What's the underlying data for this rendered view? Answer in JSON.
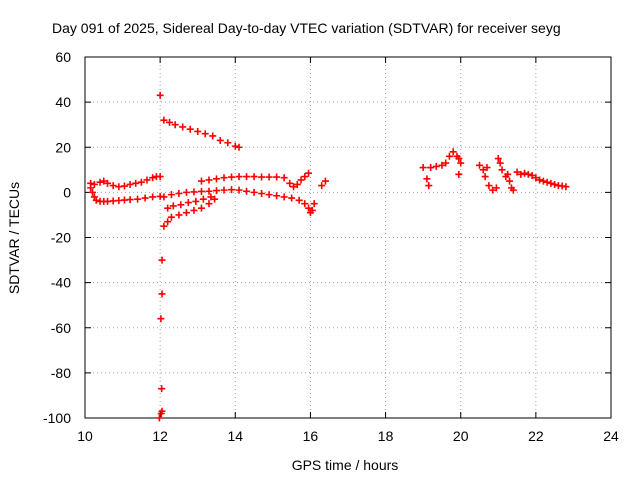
{
  "chart_data": {
    "type": "scatter",
    "title": "Day 091 of 2025, Sidereal Day-to-day VTEC variation (SDTVAR) for receiver seyg",
    "xlabel": "GPS time / hours",
    "ylabel": "SDTVAR / TECUs",
    "xlim": [
      10,
      24
    ],
    "ylim": [
      -100,
      60
    ],
    "xticks": [
      10,
      12,
      14,
      16,
      18,
      20,
      22,
      24
    ],
    "yticks": [
      -100,
      -80,
      -60,
      -40,
      -20,
      0,
      20,
      40,
      60
    ],
    "xtick_labels": [
      "10",
      "12",
      "14",
      "16",
      "18",
      "20",
      "22",
      "24"
    ],
    "ytick_labels": [
      "-100",
      "-80",
      "-60",
      "-40",
      "-20",
      "0",
      "20",
      "40",
      "60"
    ],
    "grid": true,
    "marker": "plus",
    "color": "#ff0000",
    "series": [
      {
        "name": "SDTVAR",
        "points": [
          [
            10.15,
            2
          ],
          [
            10.2,
            0
          ],
          [
            10.25,
            -2
          ],
          [
            10.3,
            -3.5
          ],
          [
            10.4,
            -4
          ],
          [
            10.5,
            -4
          ],
          [
            10.6,
            -4
          ],
          [
            10.75,
            -3.8
          ],
          [
            10.9,
            -3.6
          ],
          [
            11.05,
            -3.4
          ],
          [
            11.2,
            -3.2
          ],
          [
            11.4,
            -3
          ],
          [
            11.6,
            -2.5
          ],
          [
            11.8,
            -2
          ],
          [
            12.0,
            -1.8
          ],
          [
            10.15,
            4
          ],
          [
            10.25,
            3.5
          ],
          [
            10.4,
            4.5
          ],
          [
            10.5,
            5
          ],
          [
            10.6,
            4
          ],
          [
            10.75,
            3
          ],
          [
            10.9,
            2.5
          ],
          [
            11.05,
            2.8
          ],
          [
            11.2,
            3.5
          ],
          [
            11.35,
            4
          ],
          [
            11.5,
            4.5
          ],
          [
            11.65,
            5.5
          ],
          [
            11.8,
            6.5
          ],
          [
            11.9,
            7
          ],
          [
            12.0,
            7
          ],
          [
            12.0,
            43
          ],
          [
            12.05,
            -30
          ],
          [
            12.05,
            -45
          ],
          [
            12.02,
            -56
          ],
          [
            12.04,
            -87
          ],
          [
            12.03,
            -98
          ],
          [
            12.05,
            -97
          ],
          [
            11.98,
            -100
          ],
          [
            12.1,
            32
          ],
          [
            12.25,
            31
          ],
          [
            12.4,
            30
          ],
          [
            12.6,
            29
          ],
          [
            12.8,
            28
          ],
          [
            13.0,
            27
          ],
          [
            13.2,
            26
          ],
          [
            13.4,
            25
          ],
          [
            13.6,
            23
          ],
          [
            13.8,
            22
          ],
          [
            14.0,
            20.5
          ],
          [
            14.1,
            20
          ],
          [
            12.1,
            -2
          ],
          [
            12.3,
            -1
          ],
          [
            12.5,
            -0.5
          ],
          [
            12.7,
            0
          ],
          [
            12.9,
            0.2
          ],
          [
            13.1,
            0.4
          ],
          [
            13.3,
            0.5
          ],
          [
            13.5,
            0.8
          ],
          [
            13.7,
            1
          ],
          [
            13.9,
            1.2
          ],
          [
            14.1,
            1
          ],
          [
            14.3,
            0.5
          ],
          [
            14.5,
            0
          ],
          [
            14.7,
            -0.5
          ],
          [
            14.9,
            -1
          ],
          [
            15.1,
            -1.5
          ],
          [
            15.3,
            -2
          ],
          [
            15.5,
            -2.5
          ],
          [
            15.7,
            -3.5
          ],
          [
            15.85,
            -5
          ],
          [
            15.95,
            -7
          ],
          [
            16.0,
            -9
          ],
          [
            16.05,
            -8
          ],
          [
            16.1,
            -5
          ],
          [
            12.1,
            -15
          ],
          [
            12.2,
            -13
          ],
          [
            12.3,
            -11
          ],
          [
            12.5,
            -10
          ],
          [
            12.7,
            -9
          ],
          [
            12.9,
            -8
          ],
          [
            13.1,
            -7
          ],
          [
            13.3,
            -5
          ],
          [
            13.45,
            -3
          ],
          [
            12.2,
            -7
          ],
          [
            12.35,
            -6
          ],
          [
            12.55,
            -5.5
          ],
          [
            12.75,
            -4.5
          ],
          [
            12.95,
            -4
          ],
          [
            13.15,
            -3
          ],
          [
            13.35,
            -2
          ],
          [
            13.1,
            5
          ],
          [
            13.3,
            5.5
          ],
          [
            13.5,
            6
          ],
          [
            13.7,
            6.5
          ],
          [
            13.9,
            6.8
          ],
          [
            14.1,
            7
          ],
          [
            14.3,
            7
          ],
          [
            14.5,
            7
          ],
          [
            14.7,
            6.8
          ],
          [
            14.9,
            6.8
          ],
          [
            15.1,
            6.8
          ],
          [
            15.3,
            6.5
          ],
          [
            15.45,
            4
          ],
          [
            15.55,
            2.5
          ],
          [
            15.65,
            3.5
          ],
          [
            15.75,
            5.5
          ],
          [
            15.85,
            7
          ],
          [
            15.95,
            8.5
          ],
          [
            16.3,
            3
          ],
          [
            16.4,
            5
          ],
          [
            19.0,
            11
          ],
          [
            19.1,
            6
          ],
          [
            19.15,
            3
          ],
          [
            19.2,
            11
          ],
          [
            19.35,
            11.5
          ],
          [
            19.5,
            12
          ],
          [
            19.6,
            13
          ],
          [
            19.7,
            16
          ],
          [
            19.8,
            18
          ],
          [
            19.9,
            16
          ],
          [
            19.95,
            15
          ],
          [
            19.95,
            8
          ],
          [
            20.0,
            13
          ],
          [
            20.5,
            12
          ],
          [
            20.6,
            10
          ],
          [
            20.65,
            7
          ],
          [
            20.7,
            11
          ],
          [
            20.75,
            3
          ],
          [
            20.85,
            1
          ],
          [
            20.95,
            2
          ],
          [
            21.0,
            15
          ],
          [
            21.05,
            13
          ],
          [
            21.1,
            10
          ],
          [
            21.2,
            7
          ],
          [
            21.25,
            8
          ],
          [
            21.3,
            5
          ],
          [
            21.35,
            2
          ],
          [
            21.4,
            1
          ],
          [
            21.5,
            9
          ],
          [
            21.6,
            8
          ],
          [
            21.7,
            8.5
          ],
          [
            21.8,
            8
          ],
          [
            21.9,
            7.5
          ],
          [
            22.0,
            6.5
          ],
          [
            22.1,
            5.5
          ],
          [
            22.2,
            5
          ],
          [
            22.3,
            4.5
          ],
          [
            22.4,
            4
          ],
          [
            22.5,
            3.5
          ],
          [
            22.6,
            3
          ],
          [
            22.7,
            2.8
          ],
          [
            22.8,
            2.5
          ]
        ]
      }
    ]
  }
}
